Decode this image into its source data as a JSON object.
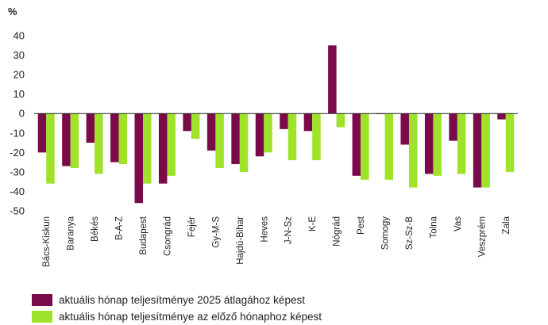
{
  "chart_data": {
    "type": "bar",
    "ylabel": "%",
    "ylim": [
      -50,
      40
    ],
    "yticks": [
      40,
      30,
      20,
      10,
      0,
      -10,
      -20,
      -30,
      -40,
      -50
    ],
    "categories": [
      "Bács-Kiskun",
      "Baranya",
      "Békés",
      "B-A-Z",
      "Budapest",
      "Csongrád",
      "Fejér",
      "Gy-M-S",
      "Hajdú-Bihar",
      "Heves",
      "J-N-Sz",
      "K-E",
      "Nógrád",
      "Pest",
      "Somogy",
      "Sz-Sz-B",
      "Tolna",
      "Vas",
      "Veszprém",
      "Zala"
    ],
    "series": [
      {
        "name": "aktuális hónap teljesítménye 2025 átlagához képest",
        "color": "#7a0a4a",
        "values": [
          -20,
          -27,
          -15,
          -25,
          -46,
          -36,
          -9,
          -19,
          -26,
          -22,
          -8,
          -9,
          35,
          -32,
          0,
          -16,
          -31,
          -14,
          -38,
          -3
        ]
      },
      {
        "name": "aktuális hónap teljesítménye az előző hónaphoz képest",
        "color": "#9fe22a",
        "values": [
          -36,
          -28,
          -31,
          -26,
          -36,
          -32,
          -13,
          -28,
          -30,
          -20,
          -24,
          -24,
          -7,
          -34,
          -34,
          -38,
          -32,
          -31,
          -38,
          -30
        ]
      }
    ],
    "grid": false,
    "legend": "bottom"
  }
}
